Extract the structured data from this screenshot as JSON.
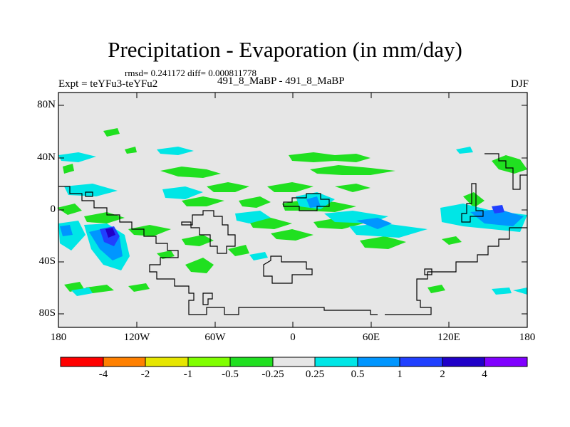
{
  "figure": {
    "title": "Precipitation - Evaporation (in mm/day)",
    "stats": "rmsd= 0.241172  diff= 0.000811778",
    "expt": "Expt = teYFu3-teYFu2",
    "case": "491_8_MaBP - 491_8_MaBP",
    "season": "DJF"
  },
  "axes": {
    "lat_labels": [
      "80N",
      "40N",
      "0",
      "40S",
      "80S"
    ],
    "lon_labels": [
      "180",
      "120W",
      "60W",
      "0",
      "60E",
      "120E",
      "180"
    ]
  },
  "colorbar": {
    "labels": [
      "-4",
      "-2",
      "-1",
      "-0.5",
      "-0.25",
      "0.25",
      "0.5",
      "1",
      "2",
      "4"
    ],
    "colors": [
      "#ff0000",
      "#ff8000",
      "#e6e600",
      "#80ff00",
      "#20e020",
      "#e6e6e6",
      "#00e6e6",
      "#0096ff",
      "#2040ff",
      "#2000c8",
      "#8000ff"
    ]
  },
  "colors": {
    "background": "#e6e6e6",
    "green": "#20e020",
    "cyan": "#00e6e6",
    "light_blue": "#0096ff",
    "blue": "#2040ff",
    "navy": "#2000c8"
  }
}
